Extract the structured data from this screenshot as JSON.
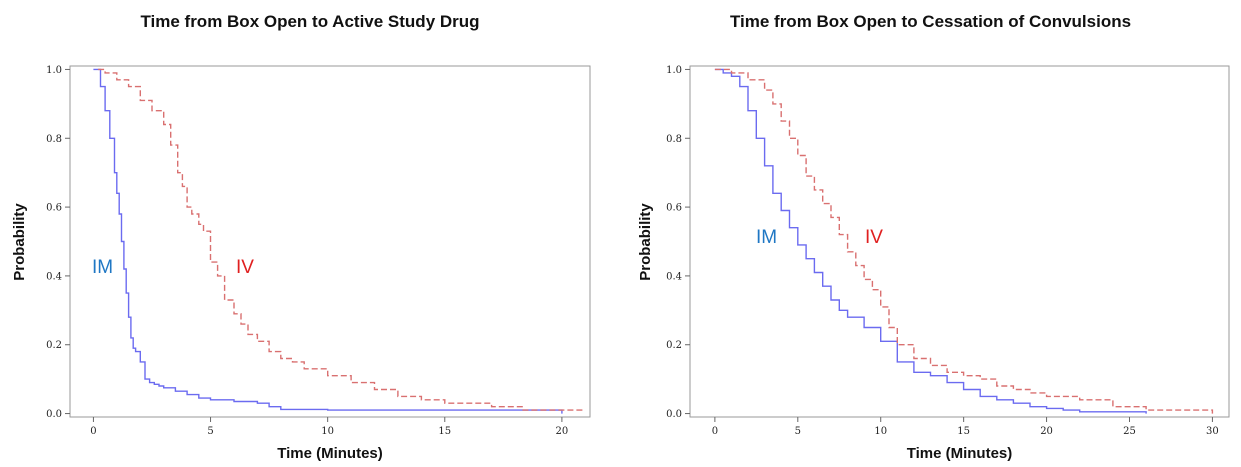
{
  "colors": {
    "im": "#6b6bf0",
    "iv": "#d97070",
    "im_label": "#1f77c4",
    "iv_label": "#e02020"
  },
  "chart_data": [
    {
      "type": "line",
      "title": "Time from Box Open to Active Study Drug",
      "xlabel": "Time (Minutes)",
      "ylabel": "Probability",
      "xlim": [
        -1,
        21.2
      ],
      "ylim": [
        -0.01,
        1.01
      ],
      "xticks": [
        0,
        5,
        10,
        15,
        20
      ],
      "xtick_labels": [
        "0",
        "5",
        "10",
        "15",
        "20"
      ],
      "yticks": [
        0,
        0.2,
        0.4,
        0.6,
        0.8,
        1.0
      ],
      "ytick_labels": [
        "0.0",
        "0.2",
        "0.4",
        "0.6",
        "0.8",
        "1.0"
      ],
      "series": [
        {
          "name": "IM",
          "style": "solid",
          "x": [
            0,
            0.3,
            0.5,
            0.7,
            0.9,
            1.0,
            1.1,
            1.2,
            1.3,
            1.4,
            1.5,
            1.6,
            1.7,
            1.8,
            2.0,
            2.2,
            2.4,
            2.6,
            2.8,
            3.0,
            3.5,
            4.0,
            4.5,
            5.0,
            6.0,
            7.0,
            7.5,
            8.0,
            10.0,
            15.0,
            19.8,
            20.0
          ],
          "y": [
            1.0,
            0.95,
            0.88,
            0.8,
            0.7,
            0.64,
            0.58,
            0.5,
            0.42,
            0.35,
            0.28,
            0.22,
            0.19,
            0.18,
            0.15,
            0.1,
            0.09,
            0.085,
            0.08,
            0.075,
            0.065,
            0.055,
            0.045,
            0.04,
            0.035,
            0.03,
            0.02,
            0.012,
            0.01,
            0.01,
            0.01,
            0.0
          ]
        },
        {
          "name": "IV",
          "style": "dashed",
          "x": [
            0.2,
            0.5,
            1.0,
            1.5,
            2.0,
            2.5,
            3.0,
            3.3,
            3.6,
            3.8,
            4.0,
            4.2,
            4.5,
            4.7,
            5.0,
            5.3,
            5.6,
            6.0,
            6.3,
            6.6,
            7.0,
            7.5,
            8.0,
            8.5,
            9.0,
            10.0,
            11.0,
            12.0,
            13.0,
            14.0,
            15.0,
            17.0,
            18.3,
            19.0,
            20.0,
            21.0
          ],
          "y": [
            1.0,
            0.99,
            0.97,
            0.95,
            0.91,
            0.88,
            0.84,
            0.78,
            0.7,
            0.66,
            0.6,
            0.58,
            0.55,
            0.53,
            0.44,
            0.4,
            0.33,
            0.29,
            0.26,
            0.23,
            0.21,
            0.18,
            0.16,
            0.15,
            0.13,
            0.11,
            0.09,
            0.07,
            0.05,
            0.04,
            0.03,
            0.02,
            0.01,
            0.01,
            0.01,
            0.01
          ]
        }
      ],
      "annotations": [
        {
          "text": "IM",
          "series": "IM"
        },
        {
          "text": "IV",
          "series": "IV"
        }
      ]
    },
    {
      "type": "line",
      "title": "Time from Box Open to Cessation of Convulsions",
      "xlabel": "Time (Minutes)",
      "ylabel": "Probability",
      "xlim": [
        -1.5,
        31
      ],
      "ylim": [
        -0.01,
        1.01
      ],
      "xticks": [
        0,
        5,
        10,
        15,
        20,
        25,
        30
      ],
      "xtick_labels": [
        "0",
        "5",
        "10",
        "15",
        "20",
        "25",
        "30"
      ],
      "yticks": [
        0,
        0.2,
        0.4,
        0.6,
        0.8,
        1.0
      ],
      "ytick_labels": [
        "0.0",
        "0.2",
        "0.4",
        "0.6",
        "0.8",
        "1.0"
      ],
      "series": [
        {
          "name": "IM",
          "style": "solid",
          "x": [
            0,
            0.5,
            1.0,
            1.5,
            2.0,
            2.5,
            3.0,
            3.5,
            4.0,
            4.5,
            5.0,
            5.5,
            6.0,
            6.5,
            7.0,
            7.5,
            8.0,
            9.0,
            10.0,
            11.0,
            12.0,
            13.0,
            14.0,
            15.0,
            16.0,
            17.0,
            18.0,
            19.0,
            20.0,
            21.0,
            22.0,
            24.0,
            26.0
          ],
          "y": [
            1.0,
            0.99,
            0.98,
            0.95,
            0.88,
            0.8,
            0.72,
            0.64,
            0.59,
            0.54,
            0.49,
            0.45,
            0.41,
            0.37,
            0.33,
            0.3,
            0.28,
            0.25,
            0.21,
            0.15,
            0.12,
            0.11,
            0.09,
            0.07,
            0.05,
            0.04,
            0.03,
            0.02,
            0.015,
            0.01,
            0.005,
            0.005,
            0.0
          ]
        },
        {
          "name": "IV",
          "style": "dashed",
          "x": [
            0,
            1.0,
            2.0,
            3.0,
            3.5,
            4.0,
            4.5,
            5.0,
            5.5,
            6.0,
            6.5,
            7.0,
            7.5,
            8.0,
            8.5,
            9.0,
            9.5,
            10.0,
            10.5,
            11.0,
            12.0,
            13.0,
            14.0,
            15.0,
            16.0,
            17.0,
            18.0,
            19.0,
            20.0,
            22.0,
            24.0,
            26.0,
            28.0,
            30.0
          ],
          "y": [
            1.0,
            0.99,
            0.97,
            0.94,
            0.9,
            0.85,
            0.8,
            0.75,
            0.69,
            0.65,
            0.61,
            0.57,
            0.52,
            0.47,
            0.43,
            0.39,
            0.36,
            0.31,
            0.25,
            0.2,
            0.16,
            0.14,
            0.12,
            0.11,
            0.1,
            0.08,
            0.07,
            0.06,
            0.05,
            0.04,
            0.02,
            0.01,
            0.01,
            0.0
          ]
        }
      ],
      "annotations": [
        {
          "text": "IM",
          "series": "IM"
        },
        {
          "text": "IV",
          "series": "IV"
        }
      ]
    }
  ]
}
